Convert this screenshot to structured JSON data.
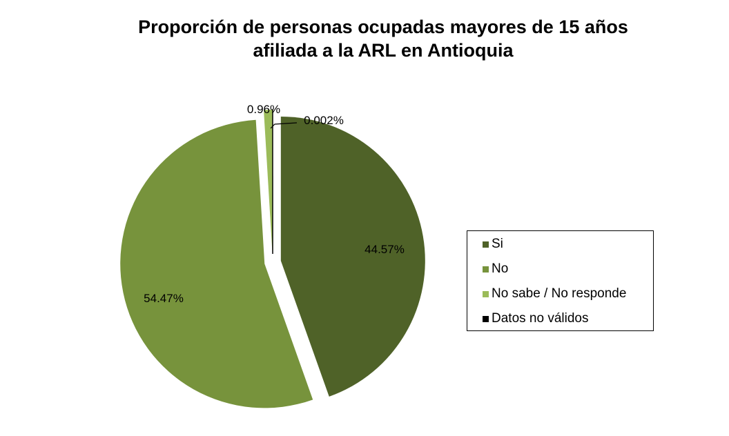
{
  "chart_data": {
    "type": "pie",
    "title": [
      "Proporción de personas ocupadas mayores de 15 años",
      "afiliada a la ARL en Antioquia"
    ],
    "categories": [
      "Si",
      "No",
      "No sabe / No responde",
      "Datos no válidos"
    ],
    "values": [
      44.57,
      54.47,
      0.96,
      0.002
    ],
    "data_labels": [
      "44.57%",
      "54.47%",
      "0.96%",
      "0.002%"
    ],
    "colors": [
      "#4F6228",
      "#77933C",
      "#9BBB59",
      "#000000"
    ],
    "exploded": true,
    "legend_position": "right"
  }
}
